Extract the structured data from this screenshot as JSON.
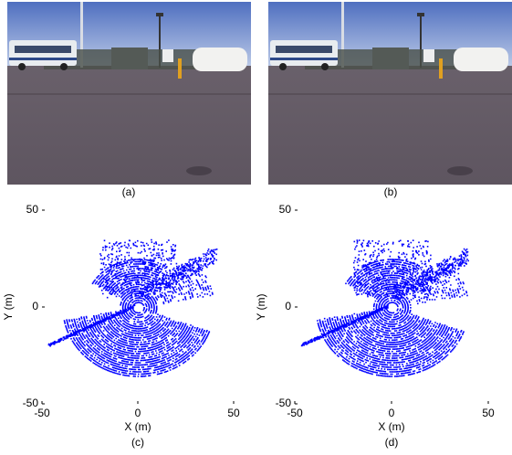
{
  "panels": [
    {
      "caption": "(a)"
    },
    {
      "caption": "(b)"
    }
  ],
  "chart_data": [
    {
      "type": "scatter",
      "caption": "(c)",
      "xlabel": "X (m)",
      "ylabel": "Y (m)",
      "color": "#0000ff",
      "xlim": [
        -50,
        50
      ],
      "ylim": [
        -50,
        50
      ],
      "xticks": [
        -50,
        0,
        50
      ],
      "yticks": [
        -50,
        0,
        50
      ]
    },
    {
      "type": "scatter",
      "caption": "(d)",
      "xlabel": "X (m)",
      "ylabel": "Y (m)",
      "color": "#0000ff",
      "xlim": [
        -50,
        50
      ],
      "ylim": [
        -50,
        50
      ],
      "xticks": [
        -50,
        0,
        50
      ],
      "yticks": [
        -50,
        0,
        50
      ]
    }
  ]
}
